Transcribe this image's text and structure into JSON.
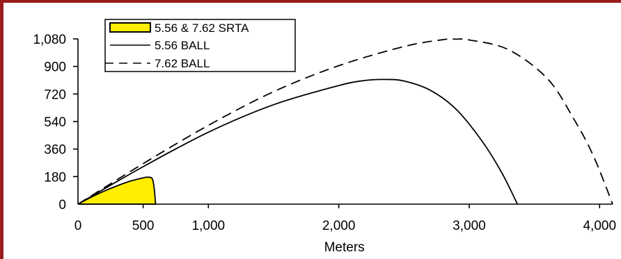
{
  "chart_data": {
    "type": "line",
    "title": "",
    "xlabel": "Meters",
    "ylabel": "",
    "xlim": [
      0,
      4100
    ],
    "ylim": [
      0,
      1080
    ],
    "x_ticks": [
      {
        "value": 0,
        "label": "0"
      },
      {
        "value": 500,
        "label": "500"
      },
      {
        "value": 1000,
        "label": "1,000"
      },
      {
        "value": 2000,
        "label": "2,000"
      },
      {
        "value": 3000,
        "label": "3,000"
      },
      {
        "value": 4000,
        "label": "4,000"
      }
    ],
    "y_ticks": [
      {
        "value": 0,
        "label": "0"
      },
      {
        "value": 180,
        "label": "180"
      },
      {
        "value": 360,
        "label": "360"
      },
      {
        "value": 540,
        "label": "540"
      },
      {
        "value": 720,
        "label": "720"
      },
      {
        "value": 900,
        "label": "900"
      },
      {
        "value": 1080,
        "label": "1,080"
      }
    ],
    "legend_position": "top-left",
    "series": [
      {
        "name": "5.56 & 7.62 SRTA",
        "style": "filled-area",
        "color": "#ffee00",
        "x": [
          0,
          100,
          200,
          300,
          400,
          500,
          540,
          570,
          585,
          595
        ],
        "y": [
          0,
          45,
          85,
          120,
          150,
          172,
          176,
          165,
          100,
          0
        ]
      },
      {
        "name": "5.56 BALL",
        "style": "solid",
        "color": "#000000",
        "x": [
          0,
          500,
          1000,
          1500,
          2000,
          2200,
          2350,
          2500,
          2700,
          2900,
          3100,
          3250,
          3370
        ],
        "y": [
          0,
          245,
          470,
          650,
          775,
          808,
          815,
          805,
          745,
          620,
          410,
          205,
          0
        ]
      },
      {
        "name": "7.62 BALL",
        "style": "dashed",
        "color": "#000000",
        "x": [
          0,
          500,
          1000,
          1500,
          2000,
          2500,
          2800,
          2900,
          3000,
          3300,
          3600,
          3800,
          3950,
          4100
        ],
        "y": [
          0,
          265,
          515,
          735,
          905,
          1030,
          1075,
          1078,
          1073,
          1010,
          820,
          560,
          320,
          0
        ]
      }
    ]
  }
}
